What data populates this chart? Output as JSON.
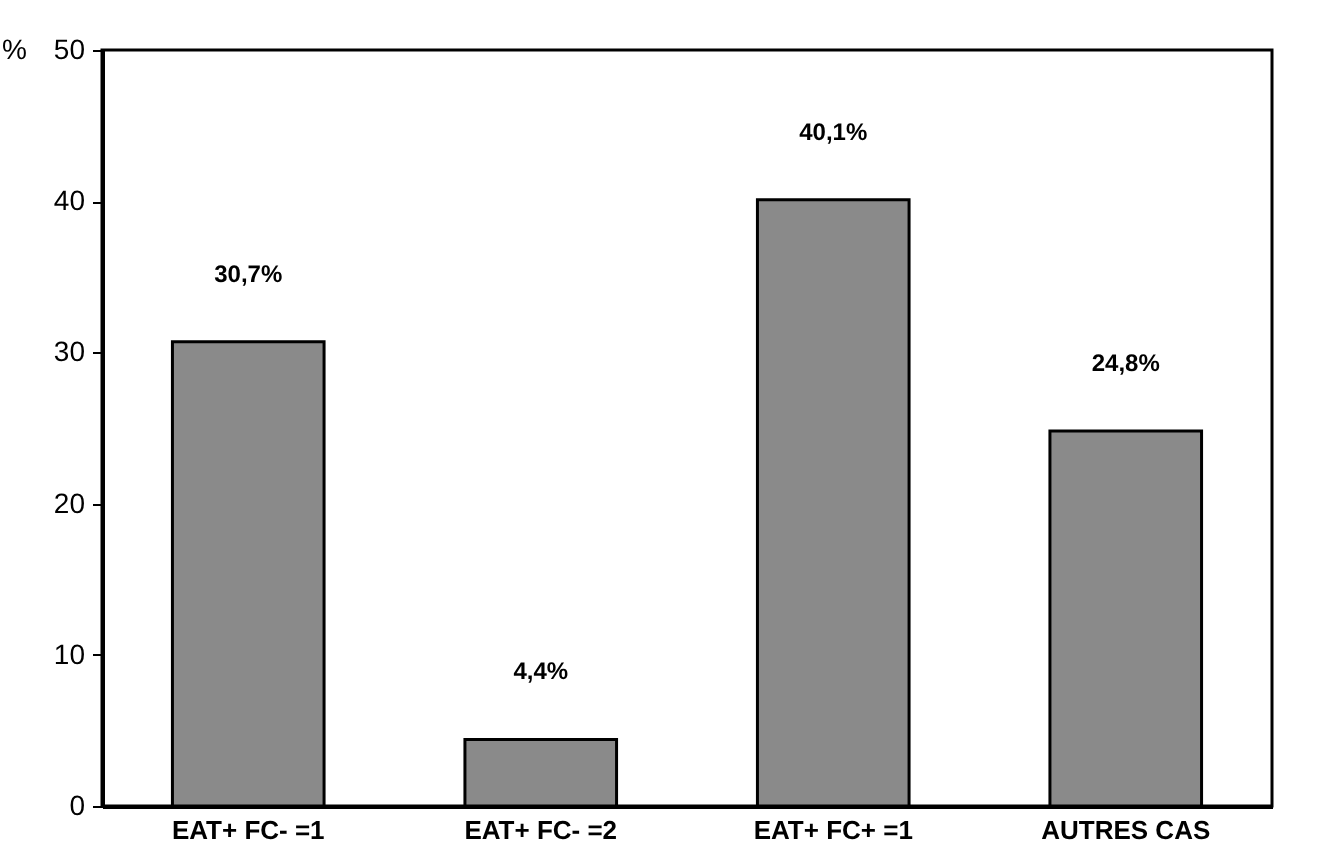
{
  "chart_data": {
    "type": "bar",
    "ylabel": "%",
    "categories": [
      "EAT+  FC-  =1",
      "EAT+  FC-  =2",
      "EAT+  FC+  =1",
      "AUTRES CAS"
    ],
    "values": [
      30.7,
      4.4,
      40.1,
      24.8
    ],
    "value_labels": [
      "30,7%",
      "4,4%",
      "40,1%",
      "24,8%"
    ],
    "color": "#8a8a8a",
    "ylim": [
      0,
      50
    ],
    "yticks": [
      0,
      10,
      20,
      30,
      40,
      50
    ],
    "grid": false
  }
}
